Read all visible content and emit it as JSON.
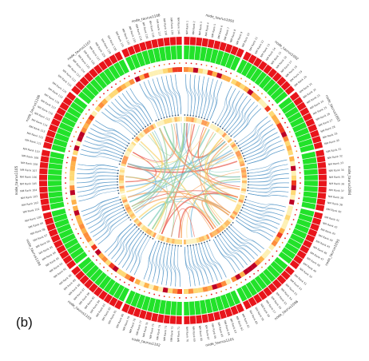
{
  "panel_label": "(b)",
  "colors": {
    "outer_ring_red": "#e8151b",
    "outer_ring_green": "#22e22a",
    "heat_ring": [
      "#fdf0b4",
      "#fed976",
      "#feb24c",
      "#fd8d3c",
      "#f03b20",
      "#bd0026"
    ],
    "intra_links": "#4f93c6",
    "inter_links": [
      "#74b8d9",
      "#9ed39b",
      "#f6d36b",
      "#f7a25c",
      "#e8584a",
      "#7fcdbb"
    ],
    "separator": "#ffffff"
  },
  "segments": [
    {
      "name": "node_taurus1091",
      "ticks": [
        "NM Rank 1",
        "NM Rank 2",
        "NM Rank 3",
        "NM Rank 4",
        "NM Rank 5",
        "NM Rank 6",
        "NM Rank 7",
        "NM Rank 8",
        "NM Rank 9",
        "NM Rank 10"
      ]
    },
    {
      "name": "node_taurus1092",
      "ticks": [
        "NM Rank 11",
        "NM Rank 12",
        "NM Rank 13",
        "NM Rank 14",
        "NM Rank 15",
        "NM Rank 16",
        "NM Rank 17",
        "NM Rank 18",
        "NM Rank 19",
        "NM Rank 20"
      ]
    },
    {
      "name": "node_taurus1093",
      "ticks": [
        "NM Rank 21",
        "NM Rank 22",
        "NM Rank 23",
        "NM Rank 24",
        "NM Rank 25",
        "NM Rank 26",
        "NM Rank 27",
        "NM Rank 28",
        "NM Rank 29",
        "NM Rank 30"
      ]
    },
    {
      "name": "node_taurus1094",
      "ticks": [
        "NM Rank 31",
        "NM Rank 32",
        "NM Rank 33",
        "NM Rank 34",
        "NM Rank 35",
        "NM Rank 36",
        "NM Rank 37",
        "NM Rank 38",
        "NM Rank 39",
        "NM Rank 40"
      ]
    },
    {
      "name": "node_taurus1095",
      "ticks": [
        "NM Rank 41",
        "NM Rank 42",
        "NM Rank 43",
        "NM Rank 44",
        "NM Rank 45",
        "NM Rank 46",
        "NM Rank 47",
        "NM Rank 48",
        "NM Rank 49",
        "NM Rank 50"
      ]
    },
    {
      "name": "node_taurus1096",
      "ticks": [
        "NM Rank 51",
        "NM Rank 52",
        "NM Rank 53",
        "NM Rank 54",
        "NM Rank 55",
        "NM Rank 56",
        "NM Rank 57",
        "NM Rank 58",
        "NM Rank 59",
        "NM Rank 60"
      ]
    },
    {
      "name": "node_taurus1101",
      "ticks": [
        "NM Rank 61",
        "NM Rank 62",
        "NM Rank 63",
        "NM Rank 64",
        "NM Rank 65",
        "NM Rank 66",
        "NM Rank 67",
        "NM Rank 68",
        "NM Rank 69",
        "NM Rank 70"
      ]
    },
    {
      "name": "node_taurus1102",
      "ticks": [
        "NM Rank 71",
        "NM Rank 72",
        "NM Rank 73",
        "NM Rank 74",
        "NM Rank 75",
        "NM Rank 76",
        "NM Rank 77",
        "NM Rank 78",
        "NM Rank 79",
        "NM Rank 80"
      ]
    },
    {
      "name": "node_taurus1103",
      "ticks": [
        "NM Rank 81",
        "NM Rank 82",
        "NM Rank 83",
        "NM Rank 84",
        "NM Rank 85",
        "NM Rank 86",
        "NM Rank 87",
        "NM Rank 88",
        "NM Rank 89",
        "NM Rank 90"
      ]
    },
    {
      "name": "node_taurus1104",
      "ticks": [
        "NM Rank 91",
        "NM Rank 92",
        "NM Rank 93",
        "NM Rank 94",
        "NM Rank 95",
        "NM Rank 96",
        "NM Rank 97",
        "NM Rank 98",
        "NM Rank 99",
        "NM Rank 100"
      ]
    },
    {
      "name": "node_taurus1105",
      "ticks": [
        "NM Rank 101",
        "NM Rank 102",
        "NM Rank 103",
        "NM Rank 104",
        "NM Rank 105",
        "NM Rank 106",
        "NM Rank 107",
        "NM Rank 108",
        "NM Rank 109",
        "NM Rank 110"
      ]
    },
    {
      "name": "node_taurus1106",
      "ticks": [
        "NM Rank 111",
        "NM Rank 112",
        "NM Rank 113",
        "NM Rank 114",
        "NM Rank 115",
        "NM Rank 116",
        "NM Rank 117",
        "NM Rank 118",
        "NM Rank 119",
        "NM Rank 120"
      ]
    },
    {
      "name": "node_taurus1107",
      "ticks": [
        "NM Rank 121",
        "NM Rank 122",
        "NM Rank 123",
        "NM Rank 124",
        "NM Rank 125",
        "NM Rank 126",
        "NM Rank 127",
        "NM Rank 128",
        "NM Rank 129",
        "NM Rank 130"
      ]
    },
    {
      "name": "node_taurus1108",
      "ticks": [
        "NM Rank 131",
        "NM Rank 132",
        "NM Rank 133",
        "NM Rank 134",
        "NM Rank 135",
        "NM Rank 136",
        "NM Rank 137",
        "NM Rank 138",
        "NM Rank 139",
        "NM Rank 140"
      ]
    }
  ]
}
